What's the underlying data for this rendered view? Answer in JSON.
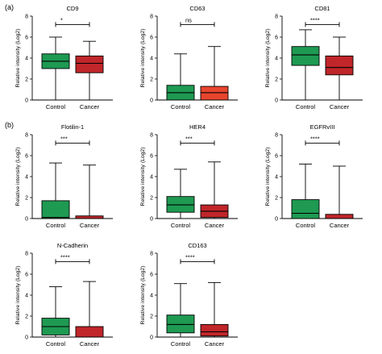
{
  "panel_labels": [
    "(a)",
    "(b)"
  ],
  "colors": {
    "control": "#1e9a52",
    "cancer": "#c0262a",
    "cancer_light": "#e8452e",
    "line": "#000000"
  },
  "chart_data": [
    {
      "type": "box",
      "title": "CD9",
      "ylabel": "Relative intensity (Log2)",
      "ylim": [
        0,
        8
      ],
      "yticks": [
        0,
        2,
        4,
        6,
        8
      ],
      "categories": [
        "Control",
        "Cancer"
      ],
      "boxes": [
        {
          "category": "Control",
          "min": 0,
          "q1": 3.0,
          "median": 3.7,
          "q3": 4.4,
          "max": 6.0,
          "color": "#1e9a52"
        },
        {
          "category": "Cancer",
          "min": 0,
          "q1": 2.6,
          "median": 3.5,
          "q3": 4.2,
          "max": 5.6,
          "color": "#c0262a"
        }
      ],
      "significance": "*"
    },
    {
      "type": "box",
      "title": "CD63",
      "ylabel": "Relative intensity (Log2)",
      "ylim": [
        0,
        8
      ],
      "yticks": [
        0,
        2,
        4,
        6,
        8
      ],
      "categories": [
        "Control",
        "Cancer"
      ],
      "boxes": [
        {
          "category": "Control",
          "min": 0,
          "q1": 0.0,
          "median": 0.7,
          "q3": 1.4,
          "max": 4.4,
          "color": "#1e9a52"
        },
        {
          "category": "Cancer",
          "min": 0,
          "q1": 0.0,
          "median": 0.7,
          "q3": 1.3,
          "max": 5.1,
          "color": "#e8452e"
        }
      ],
      "significance": "ns"
    },
    {
      "type": "box",
      "title": "CD81",
      "ylabel": "Relative intensity (Log2)",
      "ylim": [
        0,
        8
      ],
      "yticks": [
        0,
        2,
        4,
        6,
        8
      ],
      "categories": [
        "Control",
        "Cancer"
      ],
      "boxes": [
        {
          "category": "Control",
          "min": 0,
          "q1": 3.3,
          "median": 4.3,
          "q3": 5.1,
          "max": 6.7,
          "color": "#1e9a52"
        },
        {
          "category": "Cancer",
          "min": 0,
          "q1": 2.4,
          "median": 3.1,
          "q3": 4.2,
          "max": 6.0,
          "color": "#c0262a"
        }
      ],
      "significance": "****"
    },
    {
      "type": "box",
      "title": "Flotilin-1",
      "ylabel": "Relative intensity (Log2)",
      "ylim": [
        0,
        8
      ],
      "yticks": [
        0,
        2,
        4,
        6,
        8
      ],
      "categories": [
        "Control",
        "Cancer"
      ],
      "boxes": [
        {
          "category": "Control",
          "min": 0,
          "q1": 0.0,
          "median": 0.1,
          "q3": 1.7,
          "max": 5.3,
          "color": "#1e9a52"
        },
        {
          "category": "Cancer",
          "min": 0,
          "q1": 0.0,
          "median": 0.0,
          "q3": 0.25,
          "max": 5.1,
          "color": "#c0262a"
        }
      ],
      "significance": "***"
    },
    {
      "type": "box",
      "title": "HER4",
      "ylabel": "Relative intensity (Log2)",
      "ylim": [
        0,
        8
      ],
      "yticks": [
        0,
        2,
        4,
        6,
        8
      ],
      "categories": [
        "Control",
        "Cancer"
      ],
      "boxes": [
        {
          "category": "Control",
          "min": 0,
          "q1": 0.6,
          "median": 1.3,
          "q3": 2.1,
          "max": 4.7,
          "color": "#1e9a52"
        },
        {
          "category": "Cancer",
          "min": 0,
          "q1": 0.1,
          "median": 0.7,
          "q3": 1.3,
          "max": 5.4,
          "color": "#c0262a"
        }
      ],
      "significance": "***"
    },
    {
      "type": "box",
      "title": "EGFRvIII",
      "ylabel": "Relative intensity (Log2)",
      "ylim": [
        0,
        8
      ],
      "yticks": [
        0,
        2,
        4,
        6,
        8
      ],
      "categories": [
        "Control",
        "Cancer"
      ],
      "boxes": [
        {
          "category": "Control",
          "min": 0,
          "q1": 0.0,
          "median": 0.5,
          "q3": 1.8,
          "max": 5.2,
          "color": "#1e9a52"
        },
        {
          "category": "Cancer",
          "min": 0,
          "q1": 0.0,
          "median": 0.0,
          "q3": 0.4,
          "max": 5.0,
          "color": "#c0262a"
        }
      ],
      "significance": "****"
    },
    {
      "type": "box",
      "title": "N-Cadherin",
      "ylabel": "Relative intensity (Log2)",
      "ylim": [
        0,
        8
      ],
      "yticks": [
        0,
        2,
        4,
        6,
        8
      ],
      "categories": [
        "Control",
        "Cancer"
      ],
      "boxes": [
        {
          "category": "Control",
          "min": 0,
          "q1": 0.2,
          "median": 1.0,
          "q3": 1.8,
          "max": 4.8,
          "color": "#1e9a52"
        },
        {
          "category": "Cancer",
          "min": 0,
          "q1": 0.0,
          "median": 0.0,
          "q3": 1.0,
          "max": 5.3,
          "color": "#c0262a"
        }
      ],
      "significance": "****"
    },
    {
      "type": "box",
      "title": "CD163",
      "ylabel": "Relative intensity (Log2)",
      "ylim": [
        0,
        8
      ],
      "yticks": [
        0,
        2,
        4,
        6,
        8
      ],
      "categories": [
        "Control",
        "Cancer"
      ],
      "boxes": [
        {
          "category": "Control",
          "min": 0,
          "q1": 0.4,
          "median": 1.2,
          "q3": 2.1,
          "max": 5.1,
          "color": "#1e9a52"
        },
        {
          "category": "Cancer",
          "min": 0,
          "q1": 0.1,
          "median": 0.5,
          "q3": 1.2,
          "max": 5.2,
          "color": "#c0262a"
        }
      ],
      "significance": "****"
    }
  ]
}
